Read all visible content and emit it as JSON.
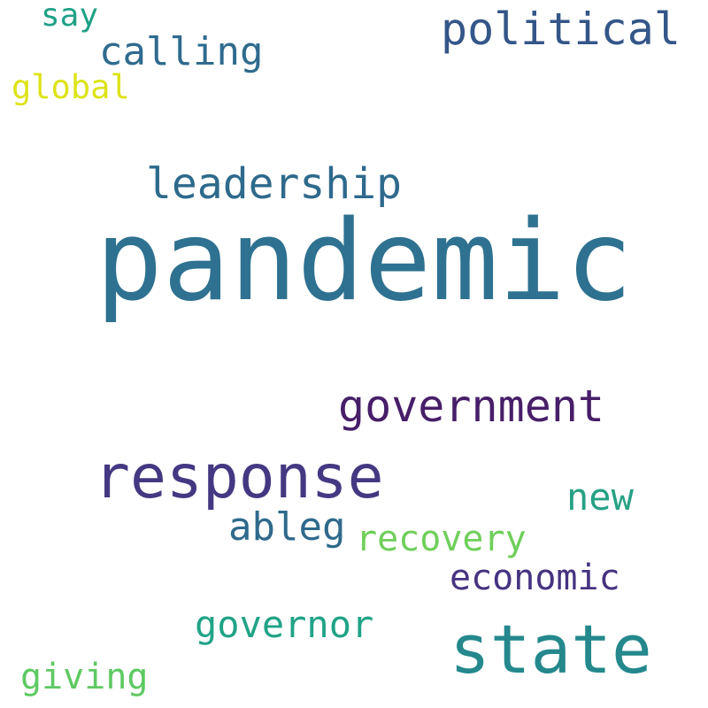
{
  "words": {
    "pandemic": {
      "text": "pandemic",
      "color": "#2e7190"
    },
    "response": {
      "text": "response",
      "color": "#453882"
    },
    "state": {
      "text": "state",
      "color": "#24888d"
    },
    "government": {
      "text": "government",
      "color": "#471e68"
    },
    "political": {
      "text": "political",
      "color": "#345688"
    },
    "leadership": {
      "text": "leadership",
      "color": "#2e6a8c"
    },
    "calling": {
      "text": "calling",
      "color": "#2f6b8e"
    },
    "ableg": {
      "text": "ableg",
      "color": "#2f6a8c"
    },
    "new": {
      "text": "new",
      "color": "#26a184"
    },
    "recovery": {
      "text": "recovery",
      "color": "#6fcf5a"
    },
    "economic": {
      "text": "economic",
      "color": "#463381"
    },
    "governor": {
      "text": "governor",
      "color": "#20a386"
    },
    "giving": {
      "text": "giving",
      "color": "#5ec962"
    },
    "global": {
      "text": "global",
      "color": "#dde318"
    },
    "say": {
      "text": "say",
      "color": "#1fa187"
    }
  }
}
